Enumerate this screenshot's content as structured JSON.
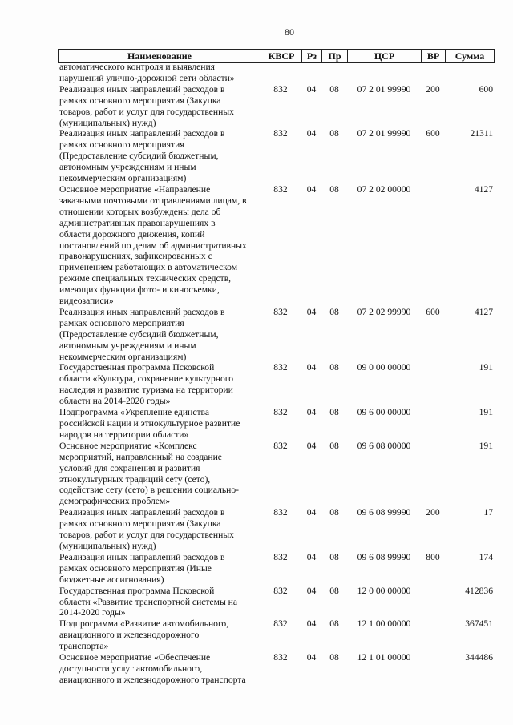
{
  "page_number": "80",
  "header": {
    "name": "Наименование",
    "kvsr": "КВСР",
    "rz": "Рз",
    "pr": "Пр",
    "csr": "ЦСР",
    "vr": "ВР",
    "sum": "Сумма"
  },
  "rows": [
    {
      "lines": [
        "автоматического контроля и выявления",
        "нарушений улично-дорожной сети области»"
      ],
      "kvsr": "",
      "rz": "",
      "pr": "",
      "csr": "",
      "vr": "",
      "sum": ""
    },
    {
      "lines": [
        "Реализация иных направлений расходов в",
        "рамках основного мероприятия (Закупка",
        "товаров, работ и услуг для государственных",
        "(муниципальных) нужд)"
      ],
      "kvsr": "832",
      "rz": "04",
      "pr": "08",
      "csr": "07 2 01 99990",
      "vr": "200",
      "sum": "600"
    },
    {
      "lines": [
        "Реализация иных направлений расходов в",
        "рамках основного мероприятия",
        "(Предоставление субсидий бюджетным,",
        "автономным учреждениям и иным",
        "некоммерческим организациям)"
      ],
      "kvsr": "832",
      "rz": "04",
      "pr": "08",
      "csr": "07 2 01 99990",
      "vr": "600",
      "sum": "21311"
    },
    {
      "lines": [
        "Основное мероприятие «Направление",
        "заказными почтовыми отправлениями лицам, в",
        "отношении которых возбуждены дела об",
        "административных правонарушениях в",
        "области дорожного движения, копий",
        "постановлений по делам об административных",
        "правонарушениях, зафиксированных с",
        "применением работающих в автоматическом",
        "режиме специальных технических средств,",
        "имеющих функции фото- и киносъемки,",
        "видеозаписи»"
      ],
      "kvsr": "832",
      "rz": "04",
      "pr": "08",
      "csr": "07 2 02 00000",
      "vr": "",
      "sum": "4127"
    },
    {
      "lines": [
        "Реализация иных направлений расходов в",
        "рамках основного мероприятия",
        "(Предоставление субсидий бюджетным,",
        "автономным учреждениям и иным",
        "некоммерческим организациям)"
      ],
      "kvsr": "832",
      "rz": "04",
      "pr": "08",
      "csr": "07 2 02 99990",
      "vr": "600",
      "sum": "4127"
    },
    {
      "lines": [
        "Государственная программа Псковской",
        "области «Культура, сохранение культурного",
        "наследия и развитие туризма на территории",
        "области на 2014-2020 годы»"
      ],
      "kvsr": "832",
      "rz": "04",
      "pr": "08",
      "csr": "09 0 00 00000",
      "vr": "",
      "sum": "191"
    },
    {
      "lines": [
        "Подпрограмма «Укрепление единства",
        "российской нации и этнокультурное развитие",
        "народов на территории области»"
      ],
      "kvsr": "832",
      "rz": "04",
      "pr": "08",
      "csr": "09 6 00 00000",
      "vr": "",
      "sum": "191"
    },
    {
      "lines": [
        "Основное мероприятие «Комплекс",
        "мероприятий, направленный на создание",
        "условий для сохранения и развития",
        "этнокультурных традиций сету (сето),",
        "содействие сету (сето) в решении социально-",
        "демографических проблем»"
      ],
      "kvsr": "832",
      "rz": "04",
      "pr": "08",
      "csr": "09 6 08 00000",
      "vr": "",
      "sum": "191"
    },
    {
      "lines": [
        "Реализация иных направлений расходов в",
        "рамках основного мероприятия (Закупка",
        "товаров, работ и услуг для государственных",
        "(муниципальных) нужд)"
      ],
      "kvsr": "832",
      "rz": "04",
      "pr": "08",
      "csr": "09 6 08 99990",
      "vr": "200",
      "sum": "17"
    },
    {
      "lines": [
        "Реализация иных направлений расходов в",
        "рамках основного мероприятия (Иные",
        "бюджетные ассигнования)"
      ],
      "kvsr": "832",
      "rz": "04",
      "pr": "08",
      "csr": "09 6 08 99990",
      "vr": "800",
      "sum": "174"
    },
    {
      "lines": [
        "Государственная программа Псковской",
        "области «Развитие транспортной системы на",
        "2014-2020 годы»"
      ],
      "kvsr": "832",
      "rz": "04",
      "pr": "08",
      "csr": "12 0 00 00000",
      "vr": "",
      "sum": "412836"
    },
    {
      "lines": [
        "Подпрограмма «Развитие автомобильного,",
        "авиационного и железнодорожного",
        "транспорта»"
      ],
      "kvsr": "832",
      "rz": "04",
      "pr": "08",
      "csr": "12 1 00 00000",
      "vr": "",
      "sum": "367451"
    },
    {
      "lines": [
        "Основное мероприятие «Обеспечение",
        "доступности услуг автомобильного,",
        "авиационного и железнодорожного транспорта"
      ],
      "kvsr": "832",
      "rz": "04",
      "pr": "08",
      "csr": "12 1 01 00000",
      "vr": "",
      "sum": "344486"
    }
  ]
}
